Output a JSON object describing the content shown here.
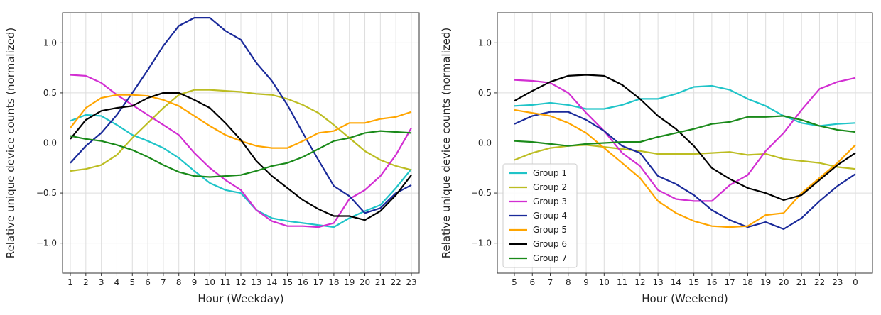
{
  "chart_data": [
    {
      "type": "line",
      "xlabel": "Hour (Weekday)",
      "ylabel": "Relative unique device counts (normalized)",
      "categories": [
        "1",
        "2",
        "3",
        "4",
        "5",
        "6",
        "7",
        "8",
        "9",
        "10",
        "11",
        "12",
        "13",
        "14",
        "15",
        "16",
        "17",
        "18",
        "19",
        "20",
        "21",
        "22",
        "23"
      ],
      "ylim": [
        -1.3,
        1.3
      ],
      "yticks": [
        {
          "value": -1,
          "label": "−1.0"
        },
        {
          "value": -0.5,
          "label": "−0.5"
        },
        {
          "value": 0,
          "label": "0.0"
        },
        {
          "value": 0.5,
          "label": "0.5"
        },
        {
          "value": 1,
          "label": "1.0"
        }
      ],
      "grid": true,
      "series": [
        {
          "color": "#1fc4c8",
          "values": [
            0.22,
            0.28,
            0.27,
            0.18,
            0.08,
            0.02,
            -0.05,
            -0.15,
            -0.28,
            -0.4,
            -0.47,
            -0.5,
            -0.67,
            -0.75,
            -0.78,
            -0.8,
            -0.82,
            -0.84,
            -0.75,
            -0.68,
            -0.62,
            -0.45,
            -0.26
          ]
        },
        {
          "color": "#bcbd22",
          "values": [
            -0.28,
            -0.26,
            -0.22,
            -0.12,
            0.05,
            0.2,
            0.35,
            0.48,
            0.53,
            0.53,
            0.52,
            0.51,
            0.49,
            0.48,
            0.44,
            0.38,
            0.3,
            0.18,
            0.05,
            -0.08,
            -0.17,
            -0.23,
            -0.27
          ]
        },
        {
          "color": "#d22ed2",
          "values": [
            0.68,
            0.67,
            0.6,
            0.48,
            0.38,
            0.28,
            0.18,
            0.08,
            -0.1,
            -0.25,
            -0.37,
            -0.47,
            -0.67,
            -0.78,
            -0.83,
            -0.83,
            -0.84,
            -0.8,
            -0.56,
            -0.47,
            -0.33,
            -0.12,
            0.15
          ]
        },
        {
          "color": "#1a2a9a",
          "values": [
            -0.2,
            -0.03,
            0.1,
            0.28,
            0.5,
            0.73,
            0.97,
            1.17,
            1.25,
            1.25,
            1.12,
            1.03,
            0.8,
            0.62,
            0.38,
            0.1,
            -0.17,
            -0.43,
            -0.53,
            -0.7,
            -0.65,
            -0.5,
            -0.42
          ]
        },
        {
          "color": "#ffa500",
          "values": [
            0.15,
            0.35,
            0.45,
            0.48,
            0.48,
            0.47,
            0.43,
            0.37,
            0.27,
            0.17,
            0.08,
            0.02,
            -0.03,
            -0.05,
            -0.05,
            0.02,
            0.1,
            0.12,
            0.2,
            0.2,
            0.24,
            0.26,
            0.31
          ]
        },
        {
          "color": "#000000",
          "values": [
            0.04,
            0.23,
            0.32,
            0.35,
            0.37,
            0.45,
            0.5,
            0.5,
            0.43,
            0.35,
            0.2,
            0.03,
            -0.18,
            -0.33,
            -0.45,
            -0.57,
            -0.66,
            -0.73,
            -0.73,
            -0.77,
            -0.68,
            -0.52,
            -0.32
          ]
        },
        {
          "color": "#1a8a1a",
          "values": [
            0.07,
            0.04,
            0.02,
            -0.02,
            -0.07,
            -0.14,
            -0.22,
            -0.29,
            -0.33,
            -0.34,
            -0.33,
            -0.32,
            -0.28,
            -0.23,
            -0.2,
            -0.14,
            -0.06,
            0.02,
            0.05,
            0.1,
            0.12,
            0.11,
            0.1
          ]
        }
      ]
    },
    {
      "type": "line",
      "xlabel": "Hour (Weekend)",
      "ylabel": "Relative unique device counts (normalized)",
      "categories": [
        "5",
        "6",
        "7",
        "8",
        "9",
        "10",
        "11",
        "12",
        "13",
        "14",
        "15",
        "16",
        "17",
        "18",
        "19",
        "20",
        "21",
        "22",
        "23",
        "0"
      ],
      "ylim": [
        -1.3,
        1.3
      ],
      "yticks": [
        {
          "value": -1,
          "label": "−1.0"
        },
        {
          "value": -0.5,
          "label": "−0.5"
        },
        {
          "value": 0,
          "label": "0.0"
        },
        {
          "value": 0.5,
          "label": "0.5"
        },
        {
          "value": 1,
          "label": "1.0"
        }
      ],
      "grid": true,
      "legend": "lower left",
      "series": [
        {
          "name": "Group 1",
          "color": "#1fc4c8",
          "values": [
            0.37,
            0.38,
            0.4,
            0.38,
            0.34,
            0.34,
            0.38,
            0.44,
            0.44,
            0.49,
            0.56,
            0.57,
            0.53,
            0.44,
            0.37,
            0.27,
            0.2,
            0.17,
            0.19,
            0.2
          ]
        },
        {
          "name": "Group 2",
          "color": "#bcbd22",
          "values": [
            -0.17,
            -0.1,
            -0.05,
            -0.03,
            -0.02,
            -0.04,
            -0.06,
            -0.08,
            -0.11,
            -0.11,
            -0.11,
            -0.1,
            -0.09,
            -0.12,
            -0.11,
            -0.16,
            -0.18,
            -0.2,
            -0.24,
            -0.26
          ]
        },
        {
          "name": "Group 3",
          "color": "#d22ed2",
          "values": [
            0.63,
            0.62,
            0.6,
            0.5,
            0.3,
            0.12,
            -0.1,
            -0.23,
            -0.47,
            -0.56,
            -0.58,
            -0.58,
            -0.42,
            -0.32,
            -0.08,
            0.1,
            0.33,
            0.54,
            0.61,
            0.65
          ]
        },
        {
          "name": "Group 4",
          "color": "#1a2a9a",
          "values": [
            0.19,
            0.27,
            0.31,
            0.31,
            0.23,
            0.12,
            -0.03,
            -0.1,
            -0.33,
            -0.41,
            -0.52,
            -0.67,
            -0.77,
            -0.84,
            -0.79,
            -0.86,
            -0.75,
            -0.58,
            -0.43,
            -0.31
          ]
        },
        {
          "name": "Group 5",
          "color": "#ffa500",
          "values": [
            0.33,
            0.3,
            0.27,
            0.2,
            0.1,
            -0.05,
            -0.2,
            -0.35,
            -0.58,
            -0.7,
            -0.78,
            -0.83,
            -0.84,
            -0.83,
            -0.72,
            -0.7,
            -0.5,
            -0.35,
            -0.2,
            -0.02
          ]
        },
        {
          "name": "Group 6",
          "color": "#000000",
          "values": [
            0.42,
            0.52,
            0.61,
            0.67,
            0.68,
            0.67,
            0.58,
            0.44,
            0.27,
            0.14,
            -0.03,
            -0.25,
            -0.36,
            -0.45,
            -0.5,
            -0.57,
            -0.52,
            -0.37,
            -0.22,
            -0.1
          ]
        },
        {
          "name": "Group 7",
          "color": "#1a8a1a",
          "values": [
            0.02,
            0.01,
            -0.01,
            -0.03,
            -0.01,
            0,
            0.01,
            0.01,
            0.06,
            0.1,
            0.14,
            0.19,
            0.21,
            0.26,
            0.26,
            0.27,
            0.23,
            0.17,
            0.13,
            0.11
          ]
        }
      ]
    }
  ]
}
